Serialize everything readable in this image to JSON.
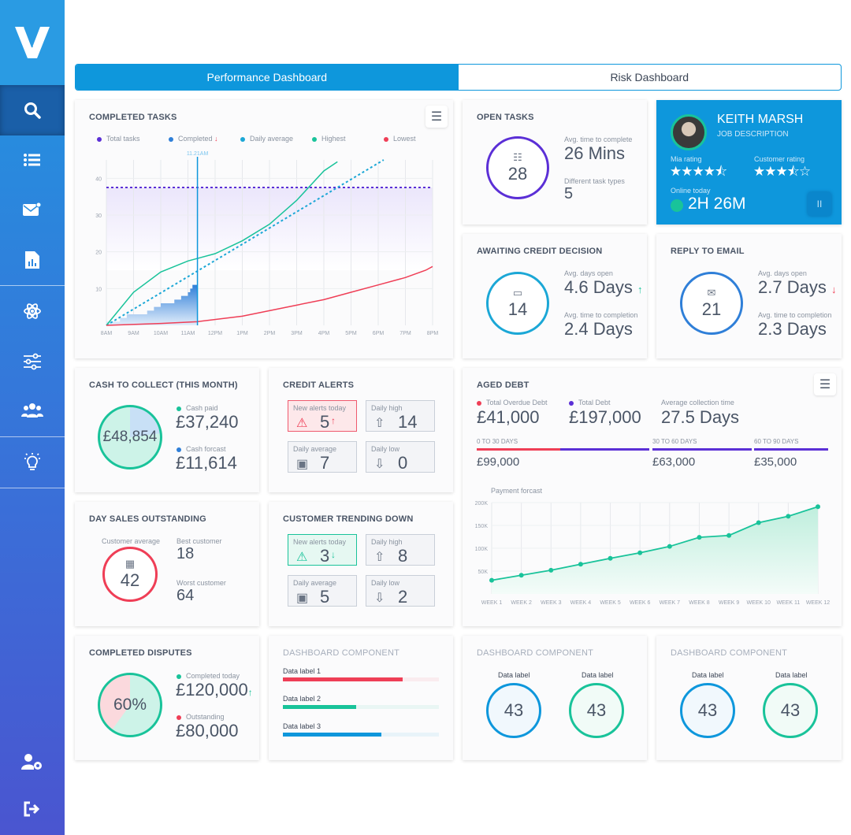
{
  "sidebar": {
    "logo": "V",
    "items": [
      {
        "icon": "search-icon",
        "active": true
      },
      {
        "icon": "list-icon"
      },
      {
        "icon": "mail-icon"
      },
      {
        "icon": "report-icon"
      },
      {
        "icon": "atom-icon"
      },
      {
        "icon": "sliders-icon"
      },
      {
        "icon": "users-icon"
      },
      {
        "icon": "lightbulb-icon"
      }
    ],
    "bottom": [
      {
        "icon": "user-settings-icon"
      },
      {
        "icon": "logout-icon"
      }
    ]
  },
  "tabs": [
    {
      "label": "Performance Dashboard",
      "active": true
    },
    {
      "label": "Risk Dashboard",
      "active": false
    }
  ],
  "colors": {
    "primary": "#0e97dc",
    "green": "#19c39a",
    "red": "#ef3e56",
    "purple": "#5b2fd6",
    "blue": "#2f7fd8"
  },
  "completed_tasks": {
    "title": "COMPLETED TASKS",
    "legend": [
      "Total tasks",
      "Completed",
      "Daily average",
      "Highest",
      "Lowest"
    ],
    "marker": "11.21AM"
  },
  "chart_data": [
    {
      "type": "line",
      "title": "COMPLETED TASKS",
      "x_ticks": [
        "8AM",
        "9AM",
        "10AM",
        "11AM",
        "12PM",
        "1PM",
        "2PM",
        "3PM",
        "4PM",
        "5PM",
        "6PM",
        "7PM",
        "8PM"
      ],
      "y_ticks": [
        10,
        20,
        30,
        40
      ],
      "ylim": [
        0,
        45
      ],
      "grid": true,
      "legend_placement": "top",
      "series": [
        {
          "name": "Total tasks",
          "style": "dotted",
          "color": "#5b2fd6",
          "points": [
            [
              "08:00",
              37.5
            ],
            [
              "20:00",
              37.5
            ]
          ]
        },
        {
          "name": "Completed",
          "style": "step-area",
          "color": "#2f7fd8",
          "points": [
            [
              "08:00",
              1
            ],
            [
              "08:15",
              1
            ],
            [
              "08:30",
              2
            ],
            [
              "08:45",
              3
            ],
            [
              "09:00",
              3
            ],
            [
              "09:15",
              3
            ],
            [
              "09:30",
              4
            ],
            [
              "09:45",
              5
            ],
            [
              "10:00",
              6
            ],
            [
              "10:15",
              6
            ],
            [
              "10:30",
              7
            ],
            [
              "10:45",
              8
            ],
            [
              "11:00",
              9
            ],
            [
              "11:05",
              10
            ],
            [
              "11:10",
              11
            ],
            [
              "11:21",
              11
            ]
          ]
        },
        {
          "name": "Daily average",
          "style": "dotted",
          "color": "#1ba7d6",
          "points": [
            [
              "08:00",
              0
            ],
            [
              "18:12",
              45
            ]
          ]
        },
        {
          "name": "Highest",
          "color": "#19c39a",
          "points": [
            [
              "08:00",
              0
            ],
            [
              "09:00",
              9
            ],
            [
              "10:00",
              14.5
            ],
            [
              "11:00",
              17.5
            ],
            [
              "12:00",
              19.5
            ],
            [
              "13:00",
              23
            ],
            [
              "14:00",
              27.5
            ],
            [
              "15:00",
              34
            ],
            [
              "16:00",
              42
            ],
            [
              "16:30",
              44.5
            ]
          ]
        },
        {
          "name": "Lowest",
          "color": "#ef3e56",
          "points": [
            [
              "08:00",
              0
            ],
            [
              "10:00",
              0.5
            ],
            [
              "11:21",
              1
            ],
            [
              "13:00",
              2.5
            ],
            [
              "14:00",
              4
            ],
            [
              "15:00",
              5.5
            ],
            [
              "16:00",
              7
            ],
            [
              "17:00",
              9
            ],
            [
              "18:00",
              11
            ],
            [
              "19:00",
              13
            ],
            [
              "19:45",
              15
            ],
            [
              "20:00",
              16
            ]
          ]
        }
      ]
    },
    {
      "type": "area",
      "title": "Payment forcast",
      "categories": [
        "WEEK 1",
        "WEEK 2",
        "WEEK 3",
        "WEEK 4",
        "WEEK 5",
        "WEEK 6",
        "WEEK 7",
        "WEEK 8",
        "WEEK 9",
        "WEEK 10",
        "WEEK 11",
        "WEEK 12"
      ],
      "values": [
        30000,
        41000,
        52000,
        65000,
        78000,
        90000,
        104000,
        124000,
        128000,
        156000,
        170000,
        191000
      ],
      "y_ticks": [
        "50K",
        "100K",
        "150K",
        "200K"
      ],
      "ylim": [
        0,
        200000
      ],
      "grid": true,
      "color": "#19c39a"
    }
  ],
  "open_tasks": {
    "title": "OPEN TASKS",
    "count": "28",
    "avg_label": "Avg. time to complete",
    "avg_value": "26 Mins",
    "types_label": "Different task types",
    "types_value": "5"
  },
  "profile": {
    "name": "KEITH MARSH",
    "job": "JOB DESCRIPTION",
    "mia_label": "Mia rating",
    "mia_rating": 4.5,
    "customer_label": "Customer rating",
    "customer_rating": 3.5,
    "online_label": "Online today",
    "online_value": "2H 26M",
    "pause_label": "II"
  },
  "awaiting": {
    "title": "AWAITING CREDIT DECISION",
    "count": "14",
    "l1": "Avg. days open",
    "v1": "4.6 Days",
    "trend": "up",
    "l2": "Avg. time to completion",
    "v2": "2.4 Days"
  },
  "reply": {
    "title": "REPLY TO EMAIL",
    "count": "21",
    "l1": "Avg. days open",
    "v1": "2.7 Days",
    "trend": "down",
    "l2": "Avg. time to completion",
    "v2": "2.3 Days"
  },
  "cash": {
    "title": "CASH TO COLLECT (THIS MONTH)",
    "total": "£48,854",
    "paid_label": "Cash paid",
    "paid": "£37,240",
    "forecast_label": "Cash forcast",
    "forecast": "£11,614"
  },
  "credit_alerts": {
    "title": "CREDIT ALERTS",
    "new_label": "New alerts today",
    "new": "5",
    "high_label": "Daily high",
    "high": "14",
    "avg_label": "Daily average",
    "avg": "7",
    "low_label": "Daily low",
    "low": "0"
  },
  "trending": {
    "title": "CUSTOMER TRENDING DOWN",
    "new_label": "New alerts today",
    "new": "3",
    "high_label": "Daily high",
    "high": "8",
    "avg_label": "Daily average",
    "avg": "5",
    "low_label": "Daily low",
    "low": "2"
  },
  "dso": {
    "title": "DAY SALES OUTSTANDING",
    "avg_label": "Customer average",
    "avg": "42",
    "best_label": "Best customer",
    "best": "18",
    "worst_label": "Worst customer",
    "worst": "64"
  },
  "aged": {
    "title": "AGED DEBT",
    "overdue_label": "Total Overdue Debt",
    "overdue": "£41,000",
    "total_label": "Total Debt",
    "total": "£197,000",
    "act_label": "Average collection time",
    "act": "27.5 Days",
    "b1_label": "0 TO 30 DAYS",
    "b1": "£99,000",
    "b2_label": "30 TO 60 DAYS",
    "b2": "£63,000",
    "b3_label": "60 TO 90 DAYS",
    "b3": "£35,000",
    "chart_title": "Payment forcast"
  },
  "disputes": {
    "title": "COMPLETED DISPUTES",
    "pct": "60%",
    "pct_value": 60,
    "done_label": "Completed today",
    "done": "£120,000",
    "out_label": "Outstanding",
    "out": "£80,000"
  },
  "comp1": {
    "title": "DASHBOARD COMPONENT",
    "bars": [
      {
        "label": "Data label 1",
        "pct": 77,
        "color": "#ef3e56"
      },
      {
        "label": "Data label 2",
        "pct": 47,
        "color": "#19c39a"
      },
      {
        "label": "Data label 3",
        "pct": 63,
        "color": "#0e97dc"
      }
    ]
  },
  "comp2": {
    "title": "DASHBOARD COMPONENT",
    "l1": "Data label",
    "v1": "43",
    "l2": "Data label",
    "v2": "43"
  },
  "comp3": {
    "title": "DASHBOARD COMPONENT",
    "l1": "Data label",
    "v1": "43",
    "l2": "Data label",
    "v2": "43"
  }
}
